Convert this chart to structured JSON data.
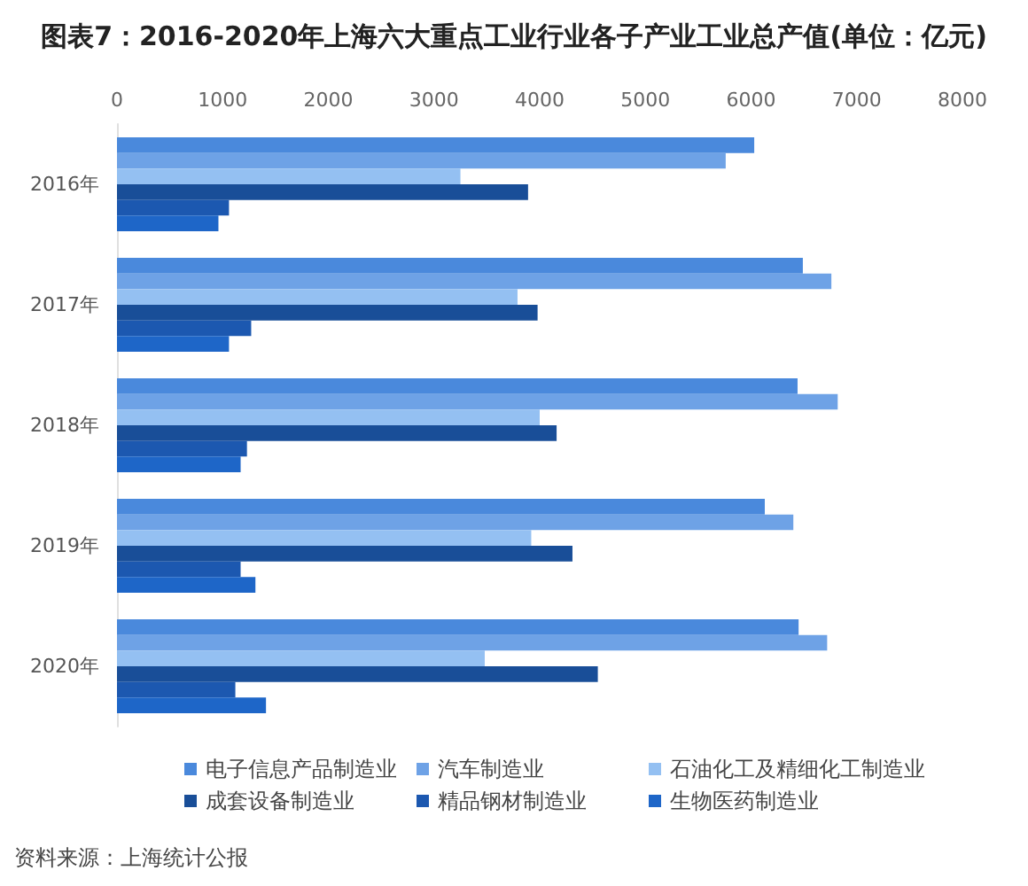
{
  "chart_data": {
    "type": "bar",
    "orientation": "horizontal",
    "title": "图表7：2016-2020年上海六大重点工业行业各子产业工业总产值(单位：亿元)",
    "categories": [
      "2016年",
      "2017年",
      "2018年",
      "2019年",
      "2020年"
    ],
    "series": [
      {
        "name": "电子信息产品制造业",
        "color": "#4a89dc",
        "values": [
          6030,
          6490,
          6440,
          6130,
          6450
        ]
      },
      {
        "name": "汽车制造业",
        "color": "#6ea2e6",
        "values": [
          5760,
          6760,
          6820,
          6400,
          6720
        ]
      },
      {
        "name": "石油化工及精细化工制造业",
        "color": "#94c0f2",
        "values": [
          3250,
          3790,
          4000,
          3920,
          3480
        ]
      },
      {
        "name": "成套设备制造业",
        "color": "#194e98",
        "values": [
          3890,
          3980,
          4160,
          4310,
          4550
        ]
      },
      {
        "name": "精品钢材制造业",
        "color": "#1c58b0",
        "values": [
          1060,
          1270,
          1230,
          1170,
          1120
        ]
      },
      {
        "name": "生物医药制造业",
        "color": "#1e66c8",
        "values": [
          960,
          1060,
          1170,
          1310,
          1410
        ]
      }
    ],
    "xlim": [
      0,
      8000
    ],
    "xticks": [
      0,
      1000,
      2000,
      3000,
      4000,
      5000,
      6000,
      7000,
      8000
    ],
    "grid": false,
    "legend": "bottom",
    "annotations": [
      "资料来源：上海统计公报"
    ]
  }
}
